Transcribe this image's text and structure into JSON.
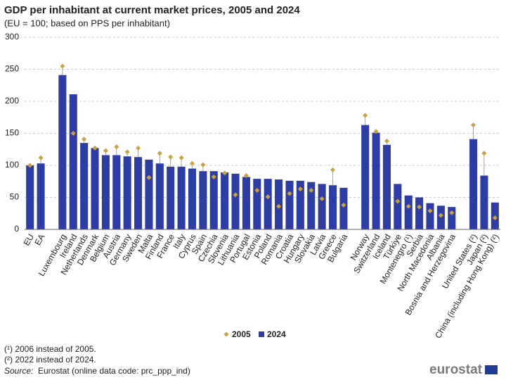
{
  "chart_data": {
    "type": "bar",
    "title": "GDP per inhabitant at current market prices, 2005 and 2024",
    "subtitle": "(EU = 100; based on PPS per inhabitant)",
    "categories": [
      "EU",
      "EA",
      null,
      "Luxembourg",
      "Ireland",
      "Netherlands",
      "Denmark",
      "Belgium",
      "Austria",
      "Germany",
      "Sweden",
      "Malta",
      "Finland",
      "France",
      "Italy",
      "Cyprus",
      "Spain",
      "Czechia",
      "Slovenia",
      "Lithuania",
      "Portugal",
      "Estonia",
      "Poland",
      "Romania",
      "Croatia",
      "Hungary",
      "Slovakia",
      "Latvia",
      "Greece",
      "Bulgaria",
      null,
      "Norway",
      "Switzerland",
      "Iceland",
      "Türkiye",
      "Montenegro (¹)",
      "Serbia",
      "North Macedonia",
      "Albania",
      "Bosnia and Herzegovina",
      null,
      "United States (²)",
      "Japan (²)",
      "China (including Hong Kong) (²)"
    ],
    "series": [
      {
        "name": "2005",
        "type": "scatter",
        "color": "#c9a13e",
        "values": [
          100,
          112,
          null,
          255,
          150,
          141,
          127,
          123,
          129,
          121,
          127,
          81,
          119,
          113,
          112,
          103,
          101,
          82,
          88,
          54,
          84,
          61,
          51,
          36,
          56,
          63,
          61,
          48,
          93,
          38,
          null,
          178,
          153,
          138,
          44,
          36,
          35,
          29,
          22,
          26,
          null,
          163,
          119,
          18
        ]
      },
      {
        "name": "2024",
        "type": "bar",
        "color": "#2e3da3",
        "values": [
          100,
          103,
          null,
          241,
          211,
          135,
          127,
          116,
          116,
          114,
          113,
          109,
          103,
          98,
          98,
          95,
          91,
          91,
          89,
          87,
          82,
          79,
          79,
          78,
          76,
          76,
          74,
          71,
          69,
          65,
          null,
          163,
          151,
          132,
          71,
          53,
          50,
          41,
          37,
          35,
          null,
          141,
          84,
          42
        ]
      }
    ],
    "ylim": [
      0,
      300
    ],
    "yticks": [
      0,
      50,
      100,
      150,
      200,
      250,
      300
    ],
    "grid": true,
    "footnotes": [
      "(¹) 2006 instead of 2005.",
      "(²) 2022 instead of 2024."
    ],
    "source_label": "Source:",
    "source_text": "Eurostat (online data code: prc_ppp_ind)",
    "logo": "eurostat"
  }
}
